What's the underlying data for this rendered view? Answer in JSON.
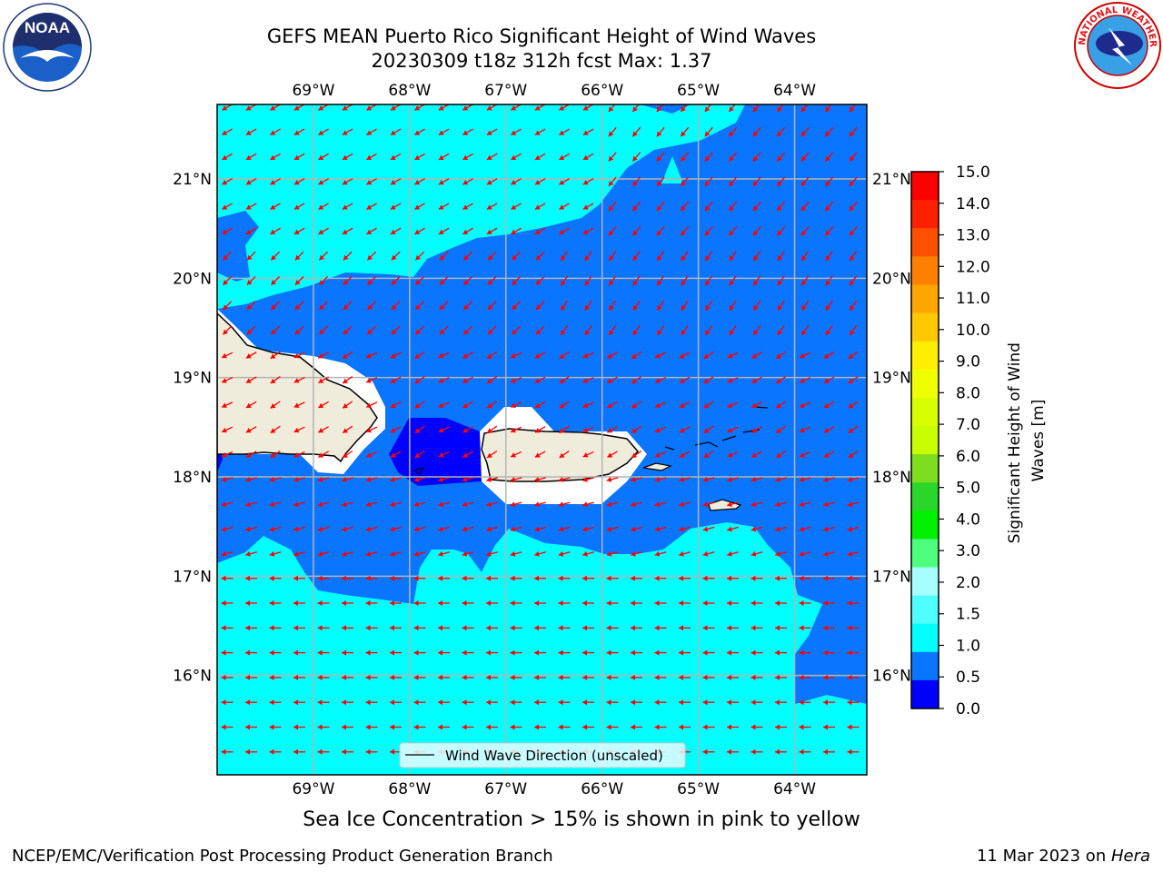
{
  "title": {
    "line1": "GEFS MEAN Puerto Rico Significant Height of Wind Waves",
    "line2": "20230309 t18z 312h fcst   Max: 1.37"
  },
  "logos": {
    "left": "NOAA",
    "right": "NATIONAL WEATHER SERVICE"
  },
  "map": {
    "lon_labels": [
      "69°W",
      "68°W",
      "67°W",
      "66°W",
      "65°W",
      "64°W"
    ],
    "lat_labels": [
      "21°N",
      "20°N",
      "19°N",
      "18°N",
      "17°N",
      "16°N"
    ],
    "lon_range": [
      -70,
      -63.25
    ],
    "lat_range": [
      15,
      21.75
    ],
    "legend_text": "Wind Wave Direction (unscaled)",
    "colors": {
      "deep": "#0000ff",
      "mid": "#0a75ff",
      "light": "#00ffff",
      "land": "#efecdc",
      "arrow": "#ff0000"
    }
  },
  "colorbar": {
    "label": "Significant Height of Wind Waves [m]",
    "label_lines": [
      "Significant Height of Wind",
      "Waves [m]"
    ],
    "ticks": [
      "15.0",
      "14.0",
      "13.0",
      "12.0",
      "11.0",
      "10.0",
      "9.0",
      "8.0",
      "7.0",
      "6.0",
      "5.0",
      "4.0",
      "3.0",
      "2.0",
      "1.5",
      "1.0",
      "0.5",
      "0.0"
    ],
    "bands": [
      "#ff0000",
      "#ff2000",
      "#ff5000",
      "#ff8000",
      "#ffa500",
      "#ffc800",
      "#ffee00",
      "#f0ff00",
      "#d7ff00",
      "#c8ff00",
      "#7ddd1e",
      "#2bd62b",
      "#00f000",
      "#4dff7d",
      "#a6ffff",
      "#50ffff",
      "#00ffff",
      "#0a75ff",
      "#0000ff"
    ]
  },
  "note": "Sea Ice Concentration > 15% is shown in pink to yellow",
  "footer": {
    "left": "NCEP/EMC/Verification Post Processing Product Generation Branch",
    "date": "11 Mar 2023 on ",
    "machine": "Hera"
  }
}
